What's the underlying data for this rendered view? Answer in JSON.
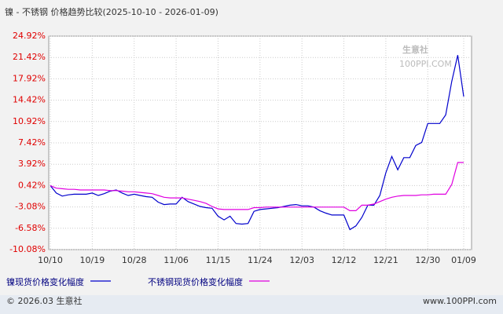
{
  "chart_data": {
    "type": "line",
    "title": "镍 - 不锈钢 价格趋势比较(2025-10-10 - 2026-01-09)",
    "categories": [
      "10/10",
      null,
      null,
      null,
      null,
      null,
      null,
      "10/19",
      null,
      null,
      null,
      null,
      null,
      null,
      "10/28",
      null,
      null,
      null,
      null,
      null,
      null,
      "11/06",
      null,
      null,
      null,
      null,
      null,
      null,
      "11/15",
      null,
      null,
      null,
      null,
      null,
      null,
      "11/24",
      null,
      null,
      null,
      null,
      null,
      null,
      "12/03",
      null,
      null,
      null,
      null,
      null,
      null,
      "12/12",
      null,
      null,
      null,
      null,
      null,
      null,
      "12/21",
      null,
      null,
      null,
      null,
      null,
      null,
      "12/30",
      null,
      null,
      null,
      null,
      null,
      "01/09"
    ],
    "series": [
      {
        "name": "镍现货价格变化幅度",
        "color": "#0000cc",
        "values": [
          0.42,
          -0.8,
          -1.3,
          -1.1,
          -1.0,
          -1.0,
          -1.0,
          -0.8,
          -1.2,
          -0.9,
          -0.5,
          -0.3,
          -0.8,
          -1.2,
          -1.0,
          -1.2,
          -1.4,
          -1.5,
          -2.3,
          -2.7,
          -2.6,
          -2.6,
          -1.5,
          -2.2,
          -2.6,
          -3.0,
          -3.2,
          -3.3,
          -4.6,
          -5.2,
          -4.6,
          -5.8,
          -5.9,
          -5.8,
          -3.8,
          -3.5,
          -3.4,
          -3.3,
          -3.2,
          -3.0,
          -2.8,
          -2.7,
          -2.9,
          -2.9,
          -3.1,
          -3.7,
          -4.1,
          -4.4,
          -4.4,
          -4.4,
          -6.8,
          -6.2,
          -4.8,
          -2.8,
          -2.8,
          -1.2,
          2.5,
          5.2,
          3.0,
          5.0,
          5.0,
          7.0,
          7.5,
          10.6,
          10.6,
          10.6,
          12.0,
          17.5,
          21.8,
          15.0
        ]
      },
      {
        "name": "不锈钢现货价格变化幅度",
        "color": "#e000e0",
        "values": [
          0.42,
          0.0,
          -0.1,
          -0.2,
          -0.2,
          -0.3,
          -0.3,
          -0.3,
          -0.3,
          -0.3,
          -0.4,
          -0.4,
          -0.5,
          -0.6,
          -0.6,
          -0.7,
          -0.8,
          -0.9,
          -1.2,
          -1.5,
          -1.6,
          -1.6,
          -1.6,
          -1.8,
          -2.0,
          -2.2,
          -2.5,
          -3.0,
          -3.4,
          -3.5,
          -3.5,
          -3.5,
          -3.5,
          -3.5,
          -3.2,
          -3.2,
          -3.1,
          -3.1,
          -3.1,
          -3.1,
          -3.1,
          -3.1,
          -3.1,
          -3.1,
          -3.1,
          -3.1,
          -3.1,
          -3.1,
          -3.1,
          -3.1,
          -3.7,
          -3.7,
          -2.8,
          -2.8,
          -2.6,
          -2.2,
          -1.8,
          -1.5,
          -1.3,
          -1.2,
          -1.2,
          -1.2,
          -1.1,
          -1.1,
          -1.0,
          -1.0,
          -1.0,
          0.6,
          4.2,
          4.2
        ]
      }
    ],
    "ylim": [
      -10.08,
      24.92
    ],
    "yticks": [
      {
        "value": -10.08,
        "label": "-10.08%"
      },
      {
        "value": -6.58,
        "label": "-6.58%"
      },
      {
        "value": -3.08,
        "label": "-3.08%"
      },
      {
        "value": 0.42,
        "label": "0.42%"
      },
      {
        "value": 3.92,
        "label": "3.92%"
      },
      {
        "value": 7.42,
        "label": "7.42%"
      },
      {
        "value": 10.92,
        "label": "10.92%"
      },
      {
        "value": 14.42,
        "label": "14.42%"
      },
      {
        "value": 17.92,
        "label": "17.92%"
      },
      {
        "value": 21.42,
        "label": "21.42%"
      },
      {
        "value": 24.92,
        "label": "24.92%"
      }
    ],
    "grid": true,
    "watermark": [
      "生意社",
      "100PPI.COM"
    ],
    "footer": [
      "© 2026.03 生意社",
      "www.100PPI.com"
    ]
  }
}
